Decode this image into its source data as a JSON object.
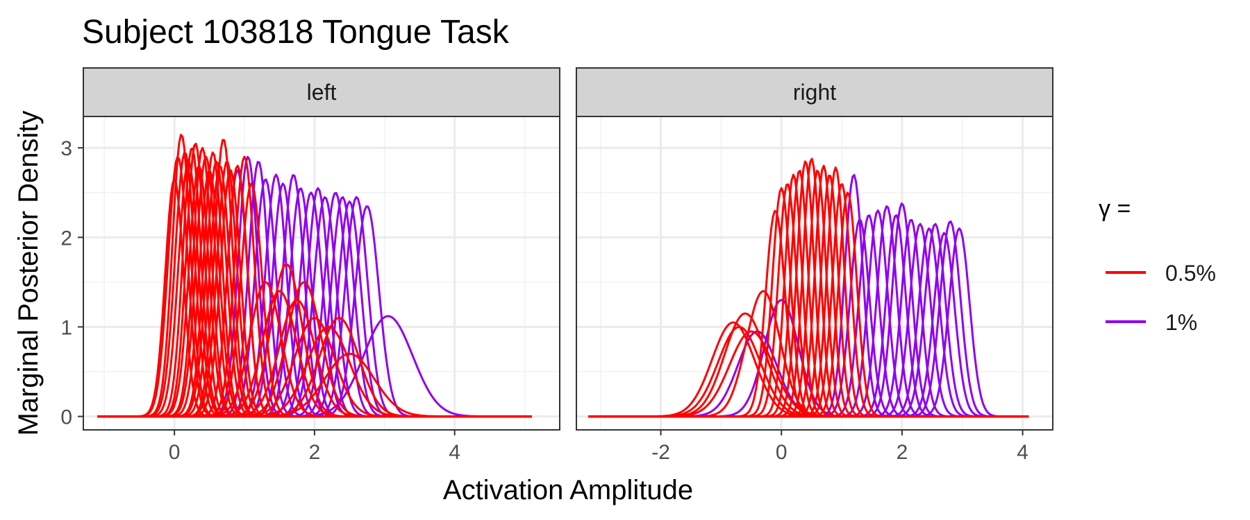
{
  "title": "Subject 103818 Tongue Task",
  "xlabel": "Activation Amplitude",
  "ylabel": "Marginal Posterior Density",
  "legend": {
    "title": "γ =",
    "items": [
      {
        "label": "0.5%",
        "color": "#ff0000"
      },
      {
        "label": "1%",
        "color": "#9000f0"
      }
    ]
  },
  "chart_data": {
    "type": "line",
    "title": "Subject 103818 Tongue Task",
    "xlabel": "Activation Amplitude",
    "ylabel": "Marginal Posterior Density",
    "legend_position": "right",
    "grid": true,
    "series_colors": {
      "0.5%": "#ff0000",
      "1%": "#9000f0"
    },
    "panels": [
      {
        "label": "left",
        "xlim": [
          -1.3,
          5.5
        ],
        "ylim": [
          -0.15,
          3.35
        ],
        "xticks": [
          0,
          2,
          4
        ],
        "yticks": [
          0,
          1,
          2,
          3
        ],
        "series": [
          {
            "name": "0.5%",
            "curves": [
              {
                "mu": 0.0,
                "peak": 2.65,
                "sd": 0.13
              },
              {
                "mu": 0.05,
                "peak": 2.9,
                "sd": 0.14
              },
              {
                "mu": 0.1,
                "peak": 3.15,
                "sd": 0.13
              },
              {
                "mu": 0.15,
                "peak": 2.95,
                "sd": 0.14
              },
              {
                "mu": 0.2,
                "peak": 2.85,
                "sd": 0.14
              },
              {
                "mu": 0.25,
                "peak": 3.0,
                "sd": 0.13
              },
              {
                "mu": 0.3,
                "peak": 3.05,
                "sd": 0.13
              },
              {
                "mu": 0.35,
                "peak": 2.8,
                "sd": 0.14
              },
              {
                "mu": 0.4,
                "peak": 3.0,
                "sd": 0.13
              },
              {
                "mu": 0.45,
                "peak": 2.9,
                "sd": 0.14
              },
              {
                "mu": 0.5,
                "peak": 2.75,
                "sd": 0.14
              },
              {
                "mu": 0.55,
                "peak": 2.95,
                "sd": 0.13
              },
              {
                "mu": 0.6,
                "peak": 2.85,
                "sd": 0.14
              },
              {
                "mu": 0.65,
                "peak": 2.8,
                "sd": 0.14
              },
              {
                "mu": 0.7,
                "peak": 3.1,
                "sd": 0.13
              },
              {
                "mu": 0.75,
                "peak": 2.85,
                "sd": 0.14
              },
              {
                "mu": 0.8,
                "peak": 2.75,
                "sd": 0.14
              },
              {
                "mu": 0.9,
                "peak": 2.8,
                "sd": 0.14
              },
              {
                "mu": 1.0,
                "peak": 2.9,
                "sd": 0.14
              },
              {
                "mu": 1.1,
                "peak": 2.6,
                "sd": 0.15
              },
              {
                "mu": 1.3,
                "peak": 1.5,
                "sd": 0.22
              },
              {
                "mu": 1.5,
                "peak": 1.4,
                "sd": 0.24
              },
              {
                "mu": 1.6,
                "peak": 1.7,
                "sd": 0.22
              },
              {
                "mu": 1.75,
                "peak": 1.3,
                "sd": 0.25
              },
              {
                "mu": 1.85,
                "peak": 1.5,
                "sd": 0.24
              },
              {
                "mu": 2.0,
                "peak": 1.1,
                "sd": 0.28
              },
              {
                "mu": 2.2,
                "peak": 1.0,
                "sd": 0.3
              },
              {
                "mu": 2.35,
                "peak": 1.1,
                "sd": 0.28
              },
              {
                "mu": 2.5,
                "peak": 0.7,
                "sd": 0.35
              }
            ]
          },
          {
            "name": "1%",
            "curves": [
              {
                "mu": 0.9,
                "peak": 2.75,
                "sd": 0.14
              },
              {
                "mu": 1.05,
                "peak": 2.9,
                "sd": 0.14
              },
              {
                "mu": 1.2,
                "peak": 2.85,
                "sd": 0.14
              },
              {
                "mu": 1.3,
                "peak": 2.65,
                "sd": 0.15
              },
              {
                "mu": 1.45,
                "peak": 2.7,
                "sd": 0.15
              },
              {
                "mu": 1.55,
                "peak": 2.6,
                "sd": 0.15
              },
              {
                "mu": 1.7,
                "peak": 2.7,
                "sd": 0.15
              },
              {
                "mu": 1.8,
                "peak": 2.55,
                "sd": 0.15
              },
              {
                "mu": 1.95,
                "peak": 2.5,
                "sd": 0.16
              },
              {
                "mu": 2.05,
                "peak": 2.55,
                "sd": 0.15
              },
              {
                "mu": 2.15,
                "peak": 2.45,
                "sd": 0.16
              },
              {
                "mu": 2.3,
                "peak": 2.5,
                "sd": 0.16
              },
              {
                "mu": 2.4,
                "peak": 2.45,
                "sd": 0.16
              },
              {
                "mu": 2.5,
                "peak": 2.4,
                "sd": 0.16
              },
              {
                "mu": 2.6,
                "peak": 2.45,
                "sd": 0.16
              },
              {
                "mu": 2.75,
                "peak": 2.35,
                "sd": 0.17
              },
              {
                "mu": 3.05,
                "peak": 1.12,
                "sd": 0.35
              }
            ]
          }
        ]
      },
      {
        "label": "right",
        "xlim": [
          -3.4,
          4.5
        ],
        "ylim": [
          -0.15,
          3.35
        ],
        "xticks": [
          -2,
          0,
          2,
          4
        ],
        "yticks": [
          0,
          1,
          2,
          3
        ],
        "series": [
          {
            "name": "0.5%",
            "curves": [
              {
                "mu": -0.8,
                "peak": 1.05,
                "sd": 0.35
              },
              {
                "mu": -0.7,
                "peak": 1.0,
                "sd": 0.35
              },
              {
                "mu": -0.6,
                "peak": 1.15,
                "sd": 0.34
              },
              {
                "mu": -0.5,
                "peak": 0.95,
                "sd": 0.36
              },
              {
                "mu": -0.3,
                "peak": 1.4,
                "sd": 0.28
              },
              {
                "mu": -0.1,
                "peak": 2.3,
                "sd": 0.16
              },
              {
                "mu": 0.0,
                "peak": 2.55,
                "sd": 0.15
              },
              {
                "mu": 0.1,
                "peak": 2.6,
                "sd": 0.15
              },
              {
                "mu": 0.2,
                "peak": 2.7,
                "sd": 0.14
              },
              {
                "mu": 0.3,
                "peak": 2.75,
                "sd": 0.14
              },
              {
                "mu": 0.4,
                "peak": 2.85,
                "sd": 0.14
              },
              {
                "mu": 0.5,
                "peak": 2.88,
                "sd": 0.14
              },
              {
                "mu": 0.6,
                "peak": 2.75,
                "sd": 0.14
              },
              {
                "mu": 0.7,
                "peak": 2.8,
                "sd": 0.14
              },
              {
                "mu": 0.8,
                "peak": 2.7,
                "sd": 0.14
              },
              {
                "mu": 0.9,
                "peak": 2.78,
                "sd": 0.14
              },
              {
                "mu": 1.0,
                "peak": 2.6,
                "sd": 0.15
              },
              {
                "mu": 1.1,
                "peak": 2.5,
                "sd": 0.15
              }
            ]
          },
          {
            "name": "1%",
            "curves": [
              {
                "mu": -0.4,
                "peak": 0.95,
                "sd": 0.32
              },
              {
                "mu": 0.0,
                "peak": 1.3,
                "sd": 0.28
              },
              {
                "mu": 1.2,
                "peak": 2.7,
                "sd": 0.15
              },
              {
                "mu": 1.3,
                "peak": 2.2,
                "sd": 0.16
              },
              {
                "mu": 1.45,
                "peak": 2.25,
                "sd": 0.16
              },
              {
                "mu": 1.6,
                "peak": 2.3,
                "sd": 0.16
              },
              {
                "mu": 1.75,
                "peak": 2.35,
                "sd": 0.16
              },
              {
                "mu": 1.9,
                "peak": 2.25,
                "sd": 0.16
              },
              {
                "mu": 2.0,
                "peak": 2.38,
                "sd": 0.16
              },
              {
                "mu": 2.15,
                "peak": 2.2,
                "sd": 0.16
              },
              {
                "mu": 2.3,
                "peak": 2.15,
                "sd": 0.17
              },
              {
                "mu": 2.45,
                "peak": 2.1,
                "sd": 0.17
              },
              {
                "mu": 2.55,
                "peak": 2.15,
                "sd": 0.17
              },
              {
                "mu": 2.7,
                "peak": 2.05,
                "sd": 0.17
              },
              {
                "mu": 2.8,
                "peak": 2.18,
                "sd": 0.17
              },
              {
                "mu": 2.95,
                "peak": 2.1,
                "sd": 0.17
              }
            ]
          }
        ]
      }
    ]
  }
}
